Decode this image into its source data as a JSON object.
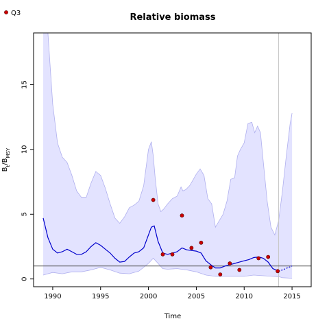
{
  "chart_data": {
    "type": "line",
    "title": "Relative biomass",
    "xlabel": "Time",
    "ylabel": {
      "main": "B",
      "sub1": "t",
      "sep": "/B",
      "sub2": "MSY"
    },
    "xlim": [
      1988,
      2017
    ],
    "ylim": [
      -0.6,
      19
    ],
    "x_ticks": [
      1990,
      1995,
      2000,
      2005,
      2010,
      2015
    ],
    "y_ticks": [
      0,
      5,
      10,
      15
    ],
    "legend": {
      "position": "top-left",
      "entries": [
        {
          "label": "Q3",
          "marker": "point",
          "color": "#cc0000"
        }
      ]
    },
    "reference_lines": {
      "horizontal_y": 1.0,
      "vertical_x": 2013.6
    },
    "colors": {
      "band_fill": "#e3e3ff",
      "band_edge": "#b0b0ee",
      "median": "#0000cc",
      "points": "#cc0000",
      "hline": "#555555",
      "vline": "#c8c8c8"
    },
    "upper_ci": {
      "x": [
        1989.0,
        1989.5,
        1990.0,
        1990.5,
        1991.0,
        1991.5,
        1992.0,
        1992.5,
        1993.0,
        1993.5,
        1994.0,
        1994.5,
        1995.0,
        1995.5,
        1996.0,
        1996.5,
        1997.0,
        1997.5,
        1998.0,
        1998.5,
        1999.0,
        1999.5,
        2000.0,
        2000.3,
        2000.5,
        2000.7,
        2001.0,
        2001.3,
        2001.6,
        2002.0,
        2002.5,
        2003.0,
        2003.4,
        2003.6,
        2003.9,
        2004.3,
        2004.7,
        2005.0,
        2005.4,
        2005.8,
        2006.2,
        2006.6,
        2007.0,
        2007.4,
        2007.8,
        2008.2,
        2008.6,
        2009.0,
        2009.3,
        2009.6,
        2010.0,
        2010.4,
        2010.8,
        2011.1,
        2011.4,
        2011.7,
        2012.0,
        2012.4,
        2012.8,
        2013.2,
        2013.6,
        2014.0,
        2014.4,
        2014.8,
        2015.0
      ],
      "y": [
        19.0,
        19.0,
        13.5,
        10.5,
        9.4,
        9.0,
        8.0,
        6.8,
        6.3,
        6.3,
        7.4,
        8.3,
        8.0,
        7.0,
        5.8,
        4.7,
        4.3,
        4.8,
        5.5,
        5.7,
        6.0,
        7.2,
        10.0,
        10.6,
        9.5,
        7.8,
        5.8,
        5.2,
        5.4,
        5.8,
        6.2,
        6.4,
        7.1,
        6.8,
        6.9,
        7.2,
        7.7,
        8.1,
        8.5,
        8.0,
        6.2,
        5.8,
        4.0,
        4.5,
        5.0,
        6.0,
        7.7,
        7.8,
        9.5,
        10.0,
        10.5,
        12.0,
        12.1,
        11.3,
        11.8,
        11.3,
        9.0,
        6.0,
        4.0,
        3.4,
        4.5,
        6.8,
        9.5,
        12.0,
        12.8
      ]
    },
    "lower_ci": {
      "x": [
        1989.0,
        1990.0,
        1991.0,
        1992.0,
        1993.0,
        1994.0,
        1995.0,
        1996.0,
        1997.0,
        1998.0,
        1999.0,
        2000.0,
        2000.5,
        2001.0,
        2001.5,
        2002.0,
        2003.0,
        2004.0,
        2005.0,
        2006.0,
        2007.0,
        2008.0,
        2009.0,
        2010.0,
        2011.0,
        2012.0,
        2013.0,
        2013.6,
        2014.0,
        2015.0
      ],
      "y": [
        0.3,
        0.5,
        0.4,
        0.55,
        0.55,
        0.7,
        0.9,
        0.7,
        0.45,
        0.4,
        0.6,
        1.2,
        1.6,
        1.2,
        0.8,
        0.75,
        0.8,
        0.7,
        0.55,
        0.3,
        0.2,
        0.2,
        0.2,
        0.2,
        0.3,
        0.25,
        0.2,
        0.18,
        0.1,
        0.05
      ]
    },
    "series": [
      {
        "name": "",
        "style": "median",
        "x": [
          1989.0,
          1989.5,
          1990.0,
          1990.5,
          1991.0,
          1991.5,
          1992.0,
          1992.5,
          1993.0,
          1993.5,
          1994.0,
          1994.5,
          1995.0,
          1995.5,
          1996.0,
          1996.5,
          1997.0,
          1997.5,
          1998.0,
          1998.5,
          1999.0,
          1999.5,
          2000.0,
          2000.3,
          2000.6,
          2001.0,
          2001.5,
          2002.0,
          2002.5,
          2003.0,
          2003.5,
          2004.0,
          2004.5,
          2005.0,
          2005.5,
          2006.0,
          2006.5,
          2007.0,
          2007.5,
          2008.0,
          2008.5,
          2009.0,
          2009.5,
          2010.0,
          2010.5,
          2011.0,
          2011.5,
          2012.0,
          2012.5,
          2013.0,
          2013.6
        ],
        "y": [
          4.7,
          3.2,
          2.3,
          2.0,
          2.1,
          2.3,
          2.1,
          1.9,
          1.9,
          2.1,
          2.5,
          2.8,
          2.6,
          2.3,
          2.0,
          1.6,
          1.3,
          1.35,
          1.7,
          2.0,
          2.1,
          2.4,
          3.4,
          4.0,
          4.1,
          2.9,
          2.0,
          1.9,
          2.0,
          2.1,
          2.4,
          2.25,
          2.2,
          2.15,
          2.0,
          1.4,
          1.1,
          0.85,
          0.85,
          1.0,
          1.1,
          1.2,
          1.3,
          1.4,
          1.5,
          1.65,
          1.7,
          1.6,
          1.3,
          0.8,
          0.6
        ]
      },
      {
        "name": "",
        "style": "projection",
        "x": [
          2013.6,
          2014.0,
          2014.5,
          2015.0
        ],
        "y": [
          0.6,
          0.7,
          0.85,
          1.0
        ]
      },
      {
        "name": "Q3",
        "style": "points",
        "x": [
          2000.5,
          2001.5,
          2002.5,
          2003.5,
          2004.5,
          2005.5,
          2006.5,
          2007.5,
          2008.5,
          2009.5,
          2011.5,
          2012.5,
          2013.5
        ],
        "y": [
          6.1,
          1.9,
          1.9,
          4.9,
          2.4,
          2.8,
          0.9,
          0.35,
          1.2,
          0.7,
          1.6,
          1.7,
          0.6
        ]
      }
    ]
  }
}
